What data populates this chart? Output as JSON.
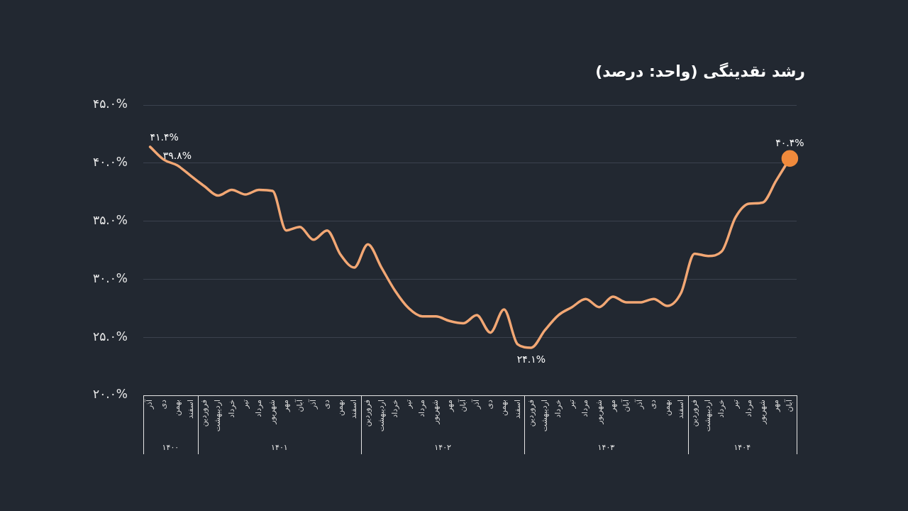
{
  "chart_data": {
    "type": "line",
    "title": "رشد نقدینگی (واحد: درصد)",
    "categories": [
      "آذر",
      "دی",
      "بهمن",
      "اسفند",
      "فروردین",
      "اردیبهشت",
      "خرداد",
      "تیر",
      "مرداد",
      "شهریور",
      "مهر",
      "آبان",
      "آذر",
      "دی",
      "بهمن",
      "اسفند",
      "فروردین",
      "اردیبهشت",
      "خرداد",
      "تیر",
      "مرداد",
      "شهریور",
      "مهر",
      "آبان",
      "آذر",
      "دی",
      "بهمن",
      "اسفند",
      "فروردین",
      "اردیبهشت",
      "خرداد",
      "تیر",
      "مرداد",
      "شهریور",
      "مهر",
      "آبان",
      "آذر",
      "دی",
      "بهمن",
      "اسفند",
      "فروردین",
      "اردیبهشت",
      "خرداد",
      "تیر",
      "مرداد",
      "شهریور",
      "مهر",
      "آبان"
    ],
    "series": [
      {
        "color": "#f2a774",
        "values": [
          41.4,
          40.3,
          39.8,
          38.9,
          38.0,
          37.2,
          37.7,
          37.3,
          37.7,
          37.6,
          34.2,
          34.5,
          33.4,
          34.2,
          32.1,
          31.0,
          33.0,
          31.0,
          29.0,
          27.5,
          26.8,
          26.8,
          26.4,
          26.2,
          26.9,
          25.4,
          27.4,
          24.4,
          24.1,
          25.6,
          26.9,
          27.6,
          28.3,
          27.6,
          28.5,
          28.0,
          28.0,
          28.3,
          27.7,
          28.8,
          32.2,
          32.0,
          32.4,
          35.3,
          36.5,
          36.6,
          38.5,
          40.4
        ],
        "value_labels": [
          "۴۱.۴%",
          null,
          "۳۹.۸%",
          null,
          null,
          null,
          null,
          null,
          null,
          null,
          null,
          null,
          null,
          null,
          null,
          null,
          null,
          null,
          null,
          null,
          null,
          null,
          null,
          null,
          null,
          null,
          null,
          null,
          "۲۴.۱%",
          null,
          null,
          null,
          null,
          null,
          null,
          null,
          null,
          null,
          null,
          null,
          null,
          null,
          null,
          null,
          null,
          null,
          null,
          "۴۰.۴%"
        ]
      }
    ],
    "ylim": [
      20,
      45
    ],
    "yticks": [
      {
        "value": 20,
        "label": "۲۰.۰%"
      },
      {
        "value": 25,
        "label": "۲۵.۰%"
      },
      {
        "value": 30,
        "label": "۳۰.۰%"
      },
      {
        "value": 35,
        "label": "۳۵.۰%"
      },
      {
        "value": 40,
        "label": "۴۰.۰%"
      },
      {
        "value": 45,
        "label": "۴۵.۰%"
      }
    ],
    "annotations": [
      "۱۴۰۰",
      "۱۴۰۱",
      "۱۴۰۲",
      "۱۴۰۳",
      "۱۴۰۴"
    ],
    "grid": "y",
    "legend": false
  }
}
